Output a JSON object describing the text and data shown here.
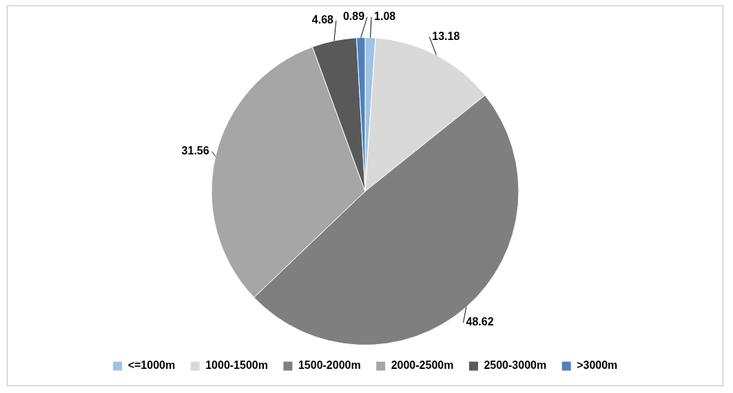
{
  "chart_data": {
    "type": "pie",
    "categories": [
      "<=1000m",
      "1000-1500m",
      "1500-2000m",
      "2000-2500m",
      "2500-3000m",
      ">3000m"
    ],
    "values": [
      1.08,
      13.18,
      48.62,
      31.56,
      4.68,
      0.89
    ],
    "colors": [
      "#9dc3e6",
      "#d9d9d9",
      "#7f7f7f",
      "#a6a6a6",
      "#595959",
      "#4f81bd"
    ],
    "data_labels": true,
    "legend": "bottom"
  }
}
